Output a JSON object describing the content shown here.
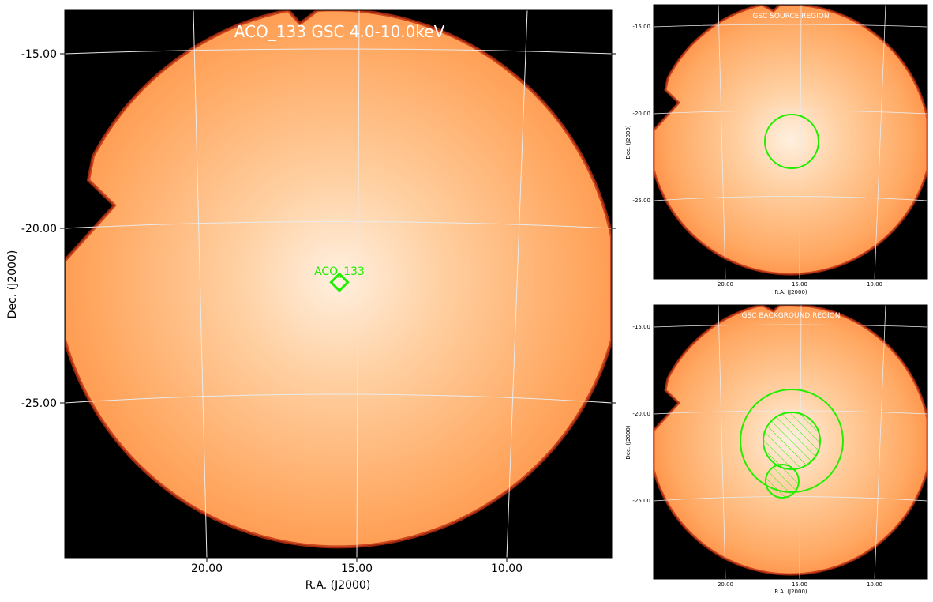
{
  "main": {
    "title": "ACO_133 GSC 4.0-10.0keV",
    "source_label": "ACO_133",
    "x_axis_label": "R.A. (J2000)",
    "y_axis_label": "Dec. (J2000)",
    "x_ticks": [
      "20.00",
      "15.00",
      "10.00"
    ],
    "y_ticks": [
      "-15.00",
      "-20.00",
      "-25.00"
    ]
  },
  "source_panel": {
    "title": "GSC SOURCE REGION",
    "x_axis_label": "R.A. (J2000)",
    "y_axis_label": "Dec. (J2000)",
    "x_ticks": [
      "20.00",
      "15.00",
      "10.00"
    ],
    "y_ticks": [
      "-15.00",
      "-20.00",
      "-25.00"
    ]
  },
  "background_panel": {
    "title": "GSC BACKGROUND REGION",
    "x_axis_label": "R.A. (J2000)",
    "y_axis_label": "Dec. (J2000)",
    "x_ticks": [
      "20.00",
      "15.00",
      "10.00"
    ],
    "y_ticks": [
      "-15.00",
      "-20.00",
      "-25.00"
    ]
  },
  "colors": {
    "frame_background": "#000000",
    "detector_fill": "#ffa660",
    "detector_center": "#ffe6cc",
    "region_marker": "#00ff00",
    "grid_line": "#e8e8e8"
  }
}
